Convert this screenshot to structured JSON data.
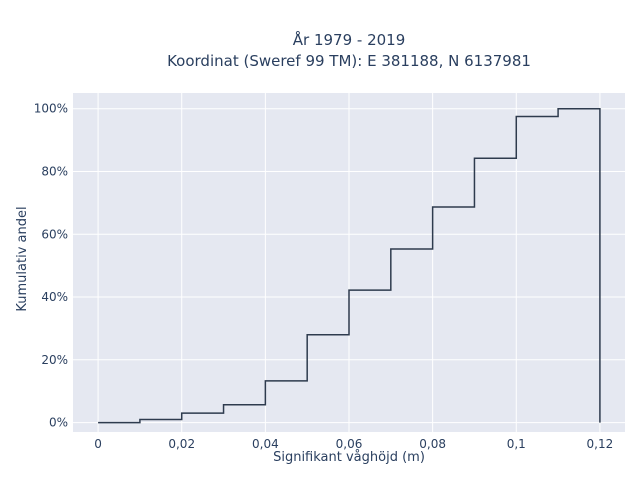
{
  "chart_data": {
    "type": "line",
    "title_line1": "År 1979 - 2019",
    "title_line2": "Koordinat (Sweref 99 TM): E 381188, N 6137981",
    "xlabel": "Signifikant våghöjd (m)",
    "ylabel": "Kumulativ andel",
    "xlim": [
      -0.006,
      0.126
    ],
    "ylim": [
      -0.03,
      1.05
    ],
    "x_ticks": [
      0,
      0.02,
      0.04,
      0.06,
      0.08,
      0.1,
      0.12
    ],
    "x_tick_labels": [
      "0",
      "0,02",
      "0,04",
      "0,06",
      "0,08",
      "0,1",
      "0,12"
    ],
    "y_ticks": [
      0,
      0.2,
      0.4,
      0.6,
      0.8,
      1.0
    ],
    "y_tick_labels": [
      "0%",
      "20%",
      "40%",
      "60%",
      "80%",
      "100%"
    ],
    "grid": true,
    "series": [
      {
        "line_shape": "step",
        "color": "#2e3b4e",
        "x": [
          0,
          0.01,
          0.02,
          0.03,
          0.04,
          0.05,
          0.06,
          0.07,
          0.08,
          0.09,
          0.1,
          0.11,
          0.12
        ],
        "y": [
          0.0,
          0.01,
          0.03,
          0.057,
          0.133,
          0.28,
          0.422,
          0.553,
          0.687,
          0.842,
          0.975,
          1.0,
          1.0
        ],
        "drop_to_zero_at_end": true
      }
    ]
  },
  "colors": {
    "plot_background": "#e5e8f1",
    "grid": "#ffffff",
    "text": "#2a3f5f",
    "line": "#2e3b4e"
  }
}
